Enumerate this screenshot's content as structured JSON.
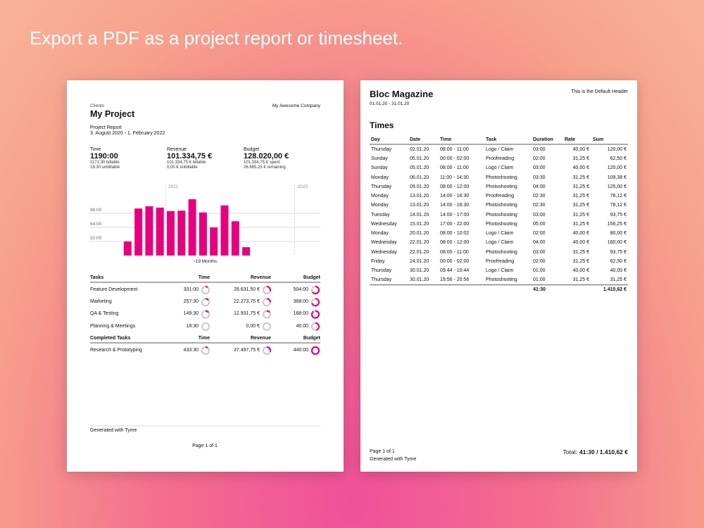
{
  "headline": "Export a PDF as a project report or timesheet.",
  "chart_data": {
    "type": "bar",
    "color": "#e6007e",
    "x_label": "~19 Months",
    "categories": [
      null,
      null,
      null,
      null,
      null,
      "2021",
      null,
      null,
      null,
      null,
      null,
      null,
      null,
      null,
      null,
      null,
      null,
      "2022",
      null
    ],
    "values": [
      0,
      32,
      107,
      112,
      109,
      101,
      102,
      128,
      98,
      64,
      114,
      78,
      19,
      0,
      0,
      0,
      0,
      0,
      0
    ],
    "ylim": [
      0,
      160
    ],
    "yticks": [
      {
        "value": 32,
        "label": "32:00"
      },
      {
        "value": 64,
        "label": "64:00"
      },
      {
        "value": 96,
        "label": "96:00"
      }
    ],
    "grid": true
  },
  "report": {
    "client_label": "Clients",
    "project": "My Project",
    "company": "My Awesome Company",
    "report_type": "Project Report",
    "period": "3. August 2020 - 1. February 2022",
    "stats": [
      {
        "label": "Time",
        "value": "1190:00",
        "lines": [
          "1171:30 billable",
          "18:30 unbillable"
        ]
      },
      {
        "label": "Revenue",
        "value": "101.334,75 €",
        "lines": [
          "101.334,75 € billable",
          "0,00 € unbillable"
        ]
      },
      {
        "label": "Budget",
        "value": "128.020,00 €",
        "lines": [
          "101.334,75 € spent",
          "26.685,25 € remaining"
        ]
      }
    ],
    "tasks": {
      "headers": [
        "Tasks",
        "Time",
        "Revenue",
        "Budget"
      ],
      "rows": [
        {
          "name": "Feature Development",
          "time": "331:00",
          "revenue": "28.631,50 €",
          "budget": "504:00",
          "rings": [
            0.1,
            0.3,
            0.65
          ]
        },
        {
          "name": "Marketing",
          "time": "257:30",
          "revenue": "22.273,75 €",
          "budget": "368:00",
          "rings": [
            0.15,
            0.25,
            0.7
          ]
        },
        {
          "name": "QA & Testing",
          "time": "149:30",
          "revenue": "12.931,75 €",
          "budget": "168:00",
          "rings": [
            0.15,
            0.15,
            0.9
          ]
        },
        {
          "name": "Planning & Meetings",
          "time": "18:30",
          "revenue": "0,00 €",
          "budget": "40:00",
          "rings": [
            0,
            0,
            0.45
          ]
        }
      ]
    },
    "completed": {
      "headers": [
        "Completed Tasks",
        "Time",
        "Revenue",
        "Budget"
      ],
      "rows": [
        {
          "name": "Research & Prototyping",
          "time": "433:30",
          "revenue": "37.497,75 €",
          "budget": "440:00",
          "rings": [
            0.1,
            0.3,
            0.99
          ]
        }
      ]
    },
    "footer": "Generated with Tyme",
    "page": "Page 1 of 1"
  },
  "timesheet": {
    "title": "Bloc Magazine",
    "range": "01.01.20 - 31.01.20",
    "header_right": "This is the Default Header",
    "section": "Times",
    "headers": [
      "Day",
      "Date",
      "Time",
      "Task",
      "Duration",
      "Rate",
      "Sum"
    ],
    "rows": [
      [
        "Thursday",
        "02.01.20",
        "08:00 - 11:00",
        "Logo / Claim",
        "03:00",
        "40,00 €",
        "120,00 €"
      ],
      [
        "Sunday",
        "05.01.20",
        "00:00 - 02:00",
        "Proofreading",
        "02:00",
        "31,25 €",
        "62,50 €"
      ],
      [
        "Sunday",
        "05.01.20",
        "08:00 - 11:00",
        "Logo / Claim",
        "03:00",
        "40,00 €",
        "120,00 €"
      ],
      [
        "Monday",
        "06.01.20",
        "11:00 - 14:30",
        "Photoshooting",
        "03:30",
        "31,25 €",
        "109,38 €"
      ],
      [
        "Thursday",
        "09.01.20",
        "08:00 - 12:00",
        "Photoshooting",
        "04:00",
        "31,25 €",
        "125,00 €"
      ],
      [
        "Monday",
        "13.01.20",
        "14:00 - 16:30",
        "Proofreading",
        "02:30",
        "31,25 €",
        "78,12 €"
      ],
      [
        "Monday",
        "13.01.20",
        "14:00 - 16:30",
        "Photoshooting",
        "02:30",
        "31,25 €",
        "78,12 €"
      ],
      [
        "Tuesday",
        "14.01.20",
        "14:00 - 17:00",
        "Photoshooting",
        "03:00",
        "31,25 €",
        "93,75 €"
      ],
      [
        "Wednesday",
        "15.01.20",
        "17:00 - 22:00",
        "Photoshooting",
        "05:00",
        "31,25 €",
        "156,25 €"
      ],
      [
        "Monday",
        "20.01.20",
        "08:00 - 10:02",
        "Logo / Claim",
        "02:00",
        "40,00 €",
        "80,00 €"
      ],
      [
        "Wednesday",
        "22.01.20",
        "08:00 - 12:00",
        "Logo / Claim",
        "04:00",
        "40,00 €",
        "160,00 €"
      ],
      [
        "Wednesday",
        "22.01.20",
        "08:00 - 11:00",
        "Photoshooting",
        "03:00",
        "31,25 €",
        "93,75 €"
      ],
      [
        "Friday",
        "24.01.20",
        "00:00 - 02:00",
        "Proofreading",
        "02:00",
        "31,25 €",
        "62,50 €"
      ],
      [
        "Thursday",
        "30.01.20",
        "09:44 - 10:44",
        "Logo / Claim",
        "01:00",
        "40,00 €",
        "40,00 €"
      ],
      [
        "Thursday",
        "30.01.20",
        "19:56 - 20:56",
        "Photoshooting",
        "01:00",
        "31,25 €",
        "31,25 €"
      ]
    ],
    "total_duration": "41:30",
    "total_sum": "1.410,62 €",
    "page": "Page 1 of 1",
    "footer": "Generated with Tyme",
    "total_label": "Total:",
    "total_value": "41:30 / 1.410,62 €"
  }
}
